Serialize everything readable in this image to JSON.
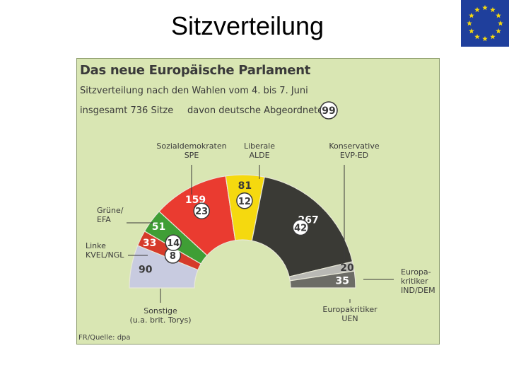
{
  "slide": {
    "title": "Sitzverteilung",
    "flag_colors": {
      "field": "#1f3f9c",
      "stars": "#f4d80f"
    }
  },
  "graphic": {
    "title": "Das neue Europäische Parlament",
    "subtitle": "Sitzverteilung nach den Wahlen vom 4. bis 7. Juni",
    "total_text": "insgesamt 736 Sitze",
    "german_text": "davon deutsche Abgeordnete",
    "german_total": "99",
    "credit": "FR/Quelle: dpa"
  },
  "chart_data": {
    "type": "pie",
    "shape": "half-donut",
    "total_seats": 736,
    "german_seats": 99,
    "segments": [
      {
        "label_lines": [
          "Sonstige",
          "(u.a. brit. Torys)"
        ],
        "seats": 90,
        "german": null,
        "color": "#c8cbe0"
      },
      {
        "label_lines": [
          "Linke",
          "KVEL/NGL"
        ],
        "seats": 33,
        "german": 8,
        "color": "#d63b2a"
      },
      {
        "label_lines": [
          "Grüne/",
          "EFA"
        ],
        "seats": 51,
        "german": 14,
        "color": "#3f9e35"
      },
      {
        "label_lines": [
          "Sozialdemokraten",
          "SPE"
        ],
        "seats": 159,
        "german": 23,
        "color": "#ea3b30"
      },
      {
        "label_lines": [
          "Liberale",
          "ALDE"
        ],
        "seats": 81,
        "german": 12,
        "color": "#f5d90f"
      },
      {
        "label_lines": [
          "Konservative",
          "EVP-ED"
        ],
        "seats": 267,
        "german": 42,
        "color": "#3a3a35"
      },
      {
        "label_lines": [
          "Europa-",
          "kritiker",
          "IND/DEM"
        ],
        "seats": 20,
        "german": null,
        "color": "#b9b9b4"
      },
      {
        "label_lines": [
          "Europakritiker",
          "UEN"
        ],
        "seats": 35,
        "german": null,
        "color": "#6c6c66"
      }
    ]
  }
}
